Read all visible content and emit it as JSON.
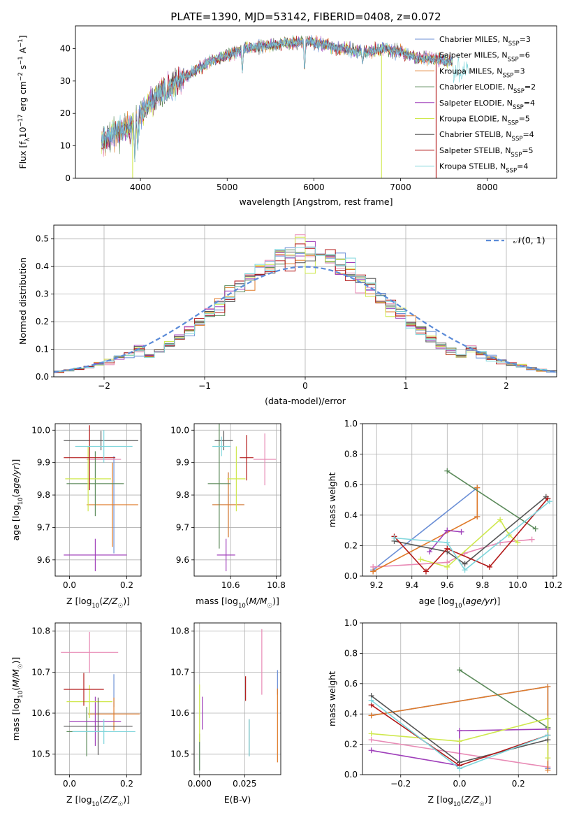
{
  "figure": {
    "title": "PLATE=1390, MJD=53142, FIBERID=0408, z=0.072"
  },
  "models": [
    {
      "name": "Chabrier MILES",
      "nssp": "3",
      "color": "#6b8fd6"
    },
    {
      "name": "Salpeter MILES",
      "nssp": "6",
      "color": "#e88ab5"
    },
    {
      "name": "Kroupa MILES",
      "nssp": "3",
      "color": "#e07b2a"
    },
    {
      "name": "Chabrier ELODIE",
      "nssp": "2",
      "color": "#5b8a5a"
    },
    {
      "name": "Salpeter ELODIE",
      "nssp": "4",
      "color": "#9f3fba"
    },
    {
      "name": "Kroupa ELODIE",
      "nssp": "5",
      "color": "#cfe84e"
    },
    {
      "name": "Chabrier STELIB",
      "nssp": "4",
      "color": "#555555"
    },
    {
      "name": "Salpeter STELIB",
      "nssp": "5",
      "color": "#b31a1a"
    },
    {
      "name": "Kroupa STELIB",
      "nssp": "4",
      "color": "#7fd6dc"
    }
  ],
  "chart_data": [
    {
      "id": "spectrum",
      "type": "line",
      "xlabel": "wavelength [Angstrom, rest frame]",
      "ylabel": "Flux [f_λ 10^-17 erg cm^-2 s^-1 A^-1]",
      "xlim": [
        3250,
        8800
      ],
      "ylim": [
        0,
        47
      ],
      "xticks": [
        4000,
        5000,
        6000,
        7000,
        8000
      ],
      "yticks": [
        0,
        10,
        20,
        30,
        40
      ],
      "legend": "top-right",
      "continuum_x": [
        3550,
        3700,
        3900,
        4000,
        4200,
        4500,
        4800,
        5000,
        5200,
        5500,
        5800,
        6000,
        6300,
        6600,
        6800,
        7000,
        7200,
        7400,
        7600
      ],
      "continuum_y": [
        11,
        14,
        16,
        20,
        26,
        31,
        36,
        38,
        40,
        41,
        42,
        42,
        40,
        39,
        40,
        39,
        37,
        37,
        36
      ],
      "absorption_lines": [
        {
          "x": 3934,
          "y": 5
        },
        {
          "x": 3969,
          "y": 8
        },
        {
          "x": 4300,
          "y": 24
        },
        {
          "x": 5175,
          "y": 32
        },
        {
          "x": 5893,
          "y": 32
        },
        {
          "x": 6563,
          "y": 35
        }
      ],
      "artifacts": [
        {
          "x": 3910,
          "y_top": 20,
          "y_bottom": 0
        },
        {
          "x": 6780,
          "y_top": 38,
          "y_bottom": 0
        },
        {
          "x": 7410,
          "y_top": 38,
          "y_bottom": 0
        }
      ]
    },
    {
      "id": "residuals",
      "type": "step-histogram",
      "xlabel": "(data-model)/error",
      "ylabel": "Normed distribution",
      "xlim": [
        -2.5,
        2.5
      ],
      "ylim": [
        0,
        0.55
      ],
      "xticks": [
        -2,
        -1,
        0,
        1,
        2
      ],
      "yticks": [
        0.0,
        0.1,
        0.2,
        0.3,
        0.4,
        0.5
      ],
      "bin_width": 0.1,
      "reference_curve": "𝒩(0, 1)",
      "reference_color": "#5b8bd8",
      "legend": "top-right"
    },
    {
      "id": "age-vs-Z",
      "type": "errorbar",
      "xlabel": "Z [log10(Z/Z☉)]",
      "ylabel": "age [log10(age/yr)]",
      "xlim": [
        -0.05,
        0.25
      ],
      "ylim": [
        9.55,
        10.02
      ],
      "xticks": [
        0.0,
        0.2
      ],
      "yticks": [
        9.6,
        9.7,
        9.8,
        9.9,
        10.0
      ],
      "points": [
        {
          "model": 0,
          "x": 0.155,
          "y": 9.77,
          "xerr": 0.0,
          "yerr": 0.15
        },
        {
          "model": 1,
          "x": 0.12,
          "y": 9.91,
          "xerr": 0.06,
          "yerr": 0.0
        },
        {
          "model": 2,
          "x": 0.15,
          "y": 9.77,
          "xerr": 0.09,
          "yerr": 0.13
        },
        {
          "model": 3,
          "x": 0.09,
          "y": 9.835,
          "xerr": 0.1,
          "yerr": 0.1
        },
        {
          "model": 4,
          "x": 0.09,
          "y": 9.615,
          "xerr": 0.11,
          "yerr": 0.05
        },
        {
          "model": 5,
          "x": 0.065,
          "y": 9.85,
          "xerr": 0.08,
          "yerr": 0.1
        },
        {
          "model": 6,
          "x": 0.11,
          "y": 9.968,
          "xerr": 0.13,
          "yerr": 0.03
        },
        {
          "model": 7,
          "x": 0.07,
          "y": 9.915,
          "xerr": 0.09,
          "yerr": 0.1
        },
        {
          "model": 8,
          "x": 0.12,
          "y": 9.95,
          "xerr": 0.1,
          "yerr": 0.05
        }
      ]
    },
    {
      "id": "age-vs-mass",
      "type": "errorbar",
      "xlabel": "mass [log10(M/M☉)]",
      "ylabel": "",
      "xlim": [
        10.44,
        10.82
      ],
      "ylim": [
        9.55,
        10.02
      ],
      "xticks": [
        10.6,
        10.8
      ],
      "yticks": [
        9.6,
        9.7,
        9.8,
        9.9,
        10.0
      ],
      "points": [
        {
          "model": 0,
          "x": 10.59,
          "y": 9.77,
          "xerr": 0.07,
          "yerr": 0.1
        },
        {
          "model": 1,
          "x": 10.75,
          "y": 9.91,
          "xerr": 0.05,
          "yerr": 0.08
        },
        {
          "model": 2,
          "x": 10.59,
          "y": 9.77,
          "xerr": 0.07,
          "yerr": 0.1
        },
        {
          "model": 3,
          "x": 10.55,
          "y": 9.835,
          "xerr": 0.05,
          "yerr": 0.2
        },
        {
          "model": 4,
          "x": 10.58,
          "y": 9.615,
          "xerr": 0.04,
          "yerr": 0.05
        },
        {
          "model": 5,
          "x": 10.625,
          "y": 9.85,
          "xerr": 0.04,
          "yerr": 0.1
        },
        {
          "model": 6,
          "x": 10.57,
          "y": 9.968,
          "xerr": 0.04,
          "yerr": 0.03
        },
        {
          "model": 7,
          "x": 10.67,
          "y": 9.915,
          "xerr": 0.03,
          "yerr": 0.07
        },
        {
          "model": 8,
          "x": 10.56,
          "y": 9.95,
          "xerr": 0.04,
          "yerr": 0.03
        }
      ]
    },
    {
      "id": "weight-vs-age",
      "type": "line",
      "xlabel": "age [log10(age/yr)]",
      "ylabel": "mass weight",
      "xlim": [
        9.12,
        10.22
      ],
      "ylim": [
        0,
        1.0
      ],
      "xticks": [
        9.2,
        9.4,
        9.6,
        9.8,
        10.0,
        10.2
      ],
      "yticks": [
        0.0,
        0.2,
        0.4,
        0.6,
        0.8,
        1.0
      ],
      "series": [
        {
          "model": 0,
          "x": [
            9.18,
            9.77,
            9.77
          ],
          "y": [
            0.04,
            0.58,
            0.39
          ]
        },
        {
          "model": 1,
          "x": [
            9.18,
            9.6,
            9.7,
            9.9,
            10.08
          ],
          "y": [
            0.06,
            0.09,
            0.15,
            0.22,
            0.24
          ]
        },
        {
          "model": 2,
          "x": [
            9.18,
            9.77,
            9.77
          ],
          "y": [
            0.03,
            0.39,
            0.58
          ]
        },
        {
          "model": 3,
          "x": [
            9.6,
            10.1
          ],
          "y": [
            0.69,
            0.31
          ]
        },
        {
          "model": 4,
          "x": [
            9.5,
            9.6,
            9.68
          ],
          "y": [
            0.16,
            0.3,
            0.29
          ]
        },
        {
          "model": 5,
          "x": [
            9.45,
            9.6,
            9.9,
            9.95,
            10.0
          ],
          "y": [
            0.11,
            0.06,
            0.37,
            0.27,
            0.22
          ]
        },
        {
          "model": 6,
          "x": [
            9.3,
            9.6,
            9.7,
            10.16
          ],
          "y": [
            0.23,
            0.16,
            0.08,
            0.52
          ]
        },
        {
          "model": 7,
          "x": [
            9.3,
            9.48,
            9.6,
            9.84,
            10.17
          ],
          "y": [
            0.26,
            0.03,
            0.18,
            0.06,
            0.51
          ]
        },
        {
          "model": 8,
          "x": [
            9.3,
            9.6,
            9.7,
            10.18
          ],
          "y": [
            0.25,
            0.22,
            0.04,
            0.49
          ]
        }
      ]
    },
    {
      "id": "mass-vs-Z",
      "type": "errorbar",
      "xlabel": "Z [log10(Z/Z☉)]",
      "ylabel": "mass [log10(M/M☉)]",
      "xlim": [
        -0.05,
        0.25
      ],
      "ylim": [
        10.45,
        10.82
      ],
      "xticks": [
        0.0,
        0.2
      ],
      "yticks": [
        10.5,
        10.6,
        10.7,
        10.8
      ],
      "points": [
        {
          "model": 0,
          "x": 0.155,
          "y": 10.655,
          "xerr": 0.0,
          "yerr": 0.04
        },
        {
          "model": 1,
          "x": 0.07,
          "y": 10.748,
          "xerr": 0.1,
          "yerr": 0.05
        },
        {
          "model": 2,
          "x": 0.155,
          "y": 10.598,
          "xerr": 0.09,
          "yerr": 0.04
        },
        {
          "model": 3,
          "x": 0.06,
          "y": 10.555,
          "xerr": 0.07,
          "yerr": 0.06
        },
        {
          "model": 4,
          "x": 0.09,
          "y": 10.58,
          "xerr": 0.09,
          "yerr": 0.06
        },
        {
          "model": 5,
          "x": 0.07,
          "y": 10.628,
          "xerr": 0.08,
          "yerr": 0.04
        },
        {
          "model": 6,
          "x": 0.1,
          "y": 10.568,
          "xerr": 0.12,
          "yerr": 0.07
        },
        {
          "model": 7,
          "x": 0.05,
          "y": 10.658,
          "xerr": 0.07,
          "yerr": 0.04
        },
        {
          "model": 8,
          "x": 0.12,
          "y": 10.555,
          "xerr": 0.11,
          "yerr": 0.03
        }
      ]
    },
    {
      "id": "mass-vs-EBV",
      "type": "errorbar",
      "xlabel": "E(B-V)",
      "ylabel": "",
      "xlim": [
        -0.003,
        0.045
      ],
      "ylim": [
        10.45,
        10.82
      ],
      "xticks": [
        0.0,
        0.025
      ],
      "xtick_labels": [
        "0.000",
        "0.025"
      ],
      "yticks": [
        10.5,
        10.6,
        10.7,
        10.8
      ],
      "points": [
        {
          "model": 0,
          "x": 0.0432,
          "y": 10.675,
          "xerr": 0.0,
          "yerr": 0.03
        },
        {
          "model": 1,
          "x": 0.0345,
          "y": 10.725,
          "xerr": 0.0,
          "yerr": 0.08
        },
        {
          "model": 2,
          "x": 0.0432,
          "y": 10.57,
          "xerr": 0.0,
          "yerr": 0.09
        },
        {
          "model": 3,
          "x": 0.0,
          "y": 10.505,
          "xerr": 0.0,
          "yerr": 0.045
        },
        {
          "model": 4,
          "x": 0.0015,
          "y": 10.6,
          "xerr": 0.0,
          "yerr": 0.04
        },
        {
          "model": 5,
          "x": 0.0,
          "y": 10.6,
          "xerr": 0.0,
          "yerr": 0.07
        },
        {
          "model": 6,
          "x": 0.0275,
          "y": 10.54,
          "xerr": 0.0,
          "yerr": 0.045
        },
        {
          "model": 7,
          "x": 0.0255,
          "y": 10.66,
          "xerr": 0.0,
          "yerr": 0.03
        },
        {
          "model": 8,
          "x": 0.0275,
          "y": 10.54,
          "xerr": 0.0,
          "yerr": 0.045
        }
      ]
    },
    {
      "id": "weight-vs-Z",
      "type": "line",
      "xlabel": "Z [log10(Z/Z☉)]",
      "ylabel": "mass weight",
      "xlim": [
        -0.33,
        0.33
      ],
      "ylim": [
        0,
        1.0
      ],
      "xticks": [
        -0.2,
        0.0,
        0.2
      ],
      "yticks": [
        0.0,
        0.2,
        0.4,
        0.6,
        0.8,
        1.0
      ],
      "series": [
        {
          "model": 0,
          "x": [
            -0.3,
            0.3,
            0.3
          ],
          "y": [
            0.39,
            0.58,
            0.04
          ]
        },
        {
          "model": 1,
          "x": [
            -0.3,
            0.3
          ],
          "y": [
            0.23,
            0.05
          ]
        },
        {
          "model": 2,
          "x": [
            -0.3,
            0.3,
            0.3
          ],
          "y": [
            0.39,
            0.58,
            0.03
          ]
        },
        {
          "model": 3,
          "x": [
            0.0,
            0.3
          ],
          "y": [
            0.69,
            0.31
          ]
        },
        {
          "model": 4,
          "x": [
            -0.3,
            0.0,
            0.0,
            0.3
          ],
          "y": [
            0.16,
            0.06,
            0.29,
            0.3
          ]
        },
        {
          "model": 5,
          "x": [
            -0.3,
            0.0,
            0.3,
            0.3
          ],
          "y": [
            0.27,
            0.22,
            0.37,
            0.11
          ]
        },
        {
          "model": 6,
          "x": [
            -0.3,
            0.0,
            0.3
          ],
          "y": [
            0.52,
            0.08,
            0.23
          ]
        },
        {
          "model": 7,
          "x": [
            -0.3,
            0.0,
            0.3
          ],
          "y": [
            0.46,
            0.06,
            0.26
          ]
        },
        {
          "model": 8,
          "x": [
            -0.3,
            0.0,
            0.3
          ],
          "y": [
            0.49,
            0.04,
            0.26
          ]
        }
      ]
    }
  ]
}
